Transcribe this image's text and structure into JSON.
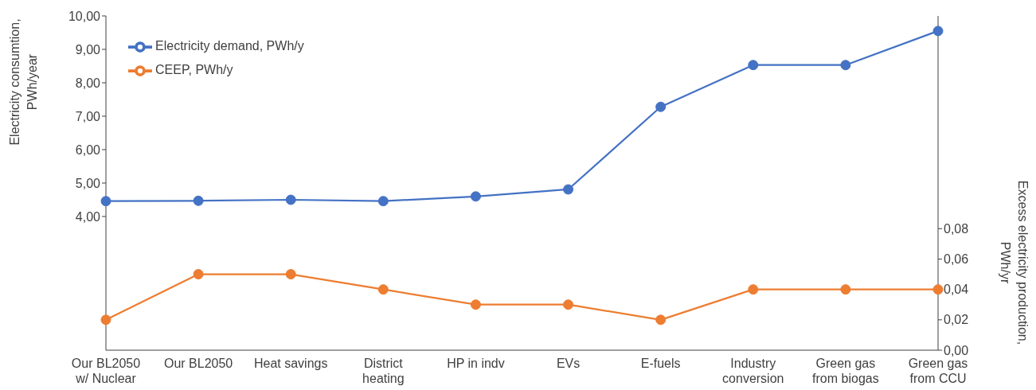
{
  "chart_data": {
    "type": "line",
    "categories": [
      "Our BL2050 w/ Nuclear",
      "Our BL2050",
      "Heat savings",
      "District heating",
      "HP in indv",
      "EVs",
      "E-fuels",
      "Industry conversion",
      "Green gas from biogas",
      "Green gas from CCU"
    ],
    "series": [
      {
        "name": "Electricity demand, PWh/y",
        "color": "#4472c4",
        "values": [
          4.46,
          4.47,
          4.5,
          4.46,
          4.6,
          4.81,
          7.28,
          8.53,
          8.53,
          9.55
        ]
      },
      {
        "name": "CEEP, PWh/y",
        "color": "#ed7d31",
        "axis": "y2",
        "values": [
          0.02,
          0.05,
          0.05,
          0.04,
          0.03,
          0.03,
          0.02,
          0.04,
          0.04,
          0.04
        ]
      }
    ],
    "ylabel": "Electricity consumtion, PWh/year",
    "y2label": "Excess electricity production, PWh/yr",
    "ylim": [
      0,
      10
    ],
    "yticks": [
      {
        "value": 4,
        "label": "4,00"
      },
      {
        "value": 5,
        "label": "5,00"
      },
      {
        "value": 6,
        "label": "6,00"
      },
      {
        "value": 7,
        "label": "7,00"
      },
      {
        "value": 8,
        "label": "8,00"
      },
      {
        "value": 9,
        "label": "9,00"
      },
      {
        "value": 10,
        "label": "10,00"
      }
    ],
    "y2lim": [
      0,
      0.22
    ],
    "y2ticks": [
      {
        "value": 0,
        "label": "0,00"
      },
      {
        "value": 0.02,
        "label": "0,02"
      },
      {
        "value": 0.04,
        "label": "0,04"
      },
      {
        "value": 0.06,
        "label": "0,06"
      },
      {
        "value": 0.08,
        "label": "0,08"
      }
    ],
    "legend": "top left",
    "marker": "circle",
    "line_style": "solid"
  }
}
